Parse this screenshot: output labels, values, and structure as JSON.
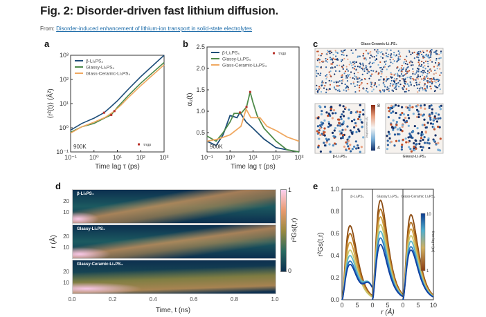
{
  "header": {
    "title": "Fig. 2: Disorder-driven fast lithium diffusion.",
    "from_label": "From:",
    "source_link": "Disorder-induced enhancement of lithium-ion transport in solid-state electrolytes"
  },
  "panel_labels": {
    "a": "a",
    "b": "b",
    "c": "c",
    "d": "d",
    "e": "e"
  },
  "colors": {
    "beta": "#1f4e79",
    "glassy": "#4e8a4a",
    "glass_ceramic": "#f0a860",
    "marker": "#b8322a"
  },
  "chart_data": [
    {
      "panel": "a",
      "type": "line",
      "xscale": "log",
      "yscale": "log",
      "xlim": [
        0.1,
        1000
      ],
      "ylim": [
        0.1,
        1000
      ],
      "xlabel": "Time lag τ (ps)",
      "ylabel": "⟨r²(t)⟩ (Å²)",
      "annotation": "900K",
      "marker_label": "τngp",
      "xticks": [
        "10⁻¹",
        "10⁰",
        "10¹",
        "10²",
        "10³"
      ],
      "yticks": [
        "10⁻¹",
        "10⁰",
        "10¹",
        "10²",
        "10³"
      ],
      "legend": "top-left",
      "series": [
        {
          "name": "β-Li₃PS₄",
          "x": [
            0.1,
            0.3,
            1,
            2.7,
            5,
            10,
            30,
            100,
            1000
          ],
          "y": [
            0.8,
            1.5,
            2.5,
            4.2,
            7,
            13,
            40,
            130,
            1000
          ]
        },
        {
          "name": "Glassy-Li₃PS₄",
          "x": [
            0.1,
            0.3,
            1,
            3,
            5.5,
            10,
            30,
            100,
            1000
          ],
          "y": [
            0.65,
            1.1,
            1.5,
            2.6,
            3.4,
            7,
            22,
            70,
            500
          ]
        },
        {
          "name": "Glass-Ceramic-Li₃PS₄",
          "x": [
            0.1,
            0.3,
            1,
            3,
            7.5,
            15,
            30,
            100,
            1000
          ],
          "y": [
            0.6,
            1.1,
            1.7,
            2.7,
            4.9,
            9,
            18,
            55,
            400
          ]
        }
      ],
      "markers": {
        "x": [
          2.7,
          5.5,
          7.5
        ],
        "y": [
          4.2,
          3.4,
          4.9
        ]
      }
    },
    {
      "panel": "b",
      "type": "line",
      "xscale": "log",
      "xlim": [
        0.1,
        1000
      ],
      "ylim": [
        0.05,
        2.5
      ],
      "xlabel": "Time lag τ (ps)",
      "ylabel": "α₂(t)",
      "annotation": "900K",
      "marker_label": "τngp",
      "xticks": [
        "10⁻¹",
        "10⁰",
        "10¹",
        "10²",
        "10³"
      ],
      "yticks": [
        "0.5",
        "1.0",
        "1.5",
        "2.0",
        "2.5"
      ],
      "legend": "top-left",
      "series": [
        {
          "name": "β-Li₃PS₄",
          "x": [
            0.1,
            0.25,
            0.5,
            1,
            2,
            2.7,
            5,
            10,
            30,
            100,
            300,
            1000
          ],
          "y": [
            0.3,
            0.2,
            0.45,
            0.9,
            0.85,
            0.97,
            0.75,
            0.6,
            0.35,
            0.15,
            0.1,
            0.05
          ]
        },
        {
          "name": "Glassy-Li₃PS₄",
          "x": [
            0.1,
            0.25,
            0.5,
            1,
            1.5,
            3,
            5.2,
            7.5,
            10,
            15,
            30,
            100,
            300,
            1000
          ],
          "y": [
            0.42,
            0.3,
            0.5,
            0.75,
            0.95,
            0.95,
            1.1,
            1.45,
            1.2,
            0.9,
            0.6,
            0.3,
            0.1,
            0.05
          ]
        },
        {
          "name": "Glass-Ceramic-Li₃PS₄",
          "x": [
            0.1,
            0.3,
            1,
            3,
            5,
            8,
            20,
            40,
            100,
            300,
            1000
          ],
          "y": [
            0.3,
            0.35,
            0.45,
            0.65,
            1.05,
            0.85,
            0.85,
            0.65,
            0.55,
            0.4,
            0.3
          ]
        }
      ],
      "markers": {
        "x": [
          2.7,
          5.2,
          7.5
        ],
        "y": [
          0.97,
          1.1,
          1.45
        ]
      }
    },
    {
      "panel": "c",
      "type": "scatter",
      "titles": [
        "Glass-Ceramic-Li₃PS₄",
        "β-Li₃PS₄",
        "Glassy-Li₃PS₄"
      ],
      "colorbar_label": "Displacement (Å)",
      "colorbar_ticks": [
        "8",
        "4"
      ]
    },
    {
      "panel": "d",
      "type": "heatmap",
      "rows": [
        "β-Li₃PS₄",
        "Glassy-Li₃PS₄",
        "Glassy-Ceramic-Li₃PS₄"
      ],
      "xlabel": "Time, t (ns)",
      "ylabel": "r (Å)",
      "xticks": [
        "0.0",
        "0.2",
        "0.4",
        "0.6",
        "0.8",
        "1.0"
      ],
      "yticks": [
        "20",
        "10"
      ],
      "colorbar_label": "r²Gs(t,r)",
      "colorbar_ticks": [
        "1",
        "0"
      ]
    },
    {
      "panel": "e",
      "type": "line",
      "xlabel": "r (Å)",
      "ylabel": "r²Gs(t,r)",
      "xlim": [
        0,
        10
      ],
      "ylim": [
        0,
        1
      ],
      "xticks": [
        "0",
        "5",
        "0",
        "5",
        "0",
        "5",
        "10"
      ],
      "yticks": [
        "0.0",
        "0.2",
        "0.4",
        "0.6",
        "0.8",
        "1.0"
      ],
      "subpanels": [
        {
          "title": "β-Li₃PS₄",
          "peaks": [
            0.67,
            0.6,
            0.52,
            0.45,
            0.4,
            0.35,
            0.32
          ]
        },
        {
          "title": "Glassy Li₃PS₄",
          "peaks": [
            0.9,
            0.82,
            0.75,
            0.68,
            0.62,
            0.56,
            0.5
          ]
        },
        {
          "title": "Glass-Ceramic Li₃PS₄",
          "peaks": [
            0.77,
            0.7,
            0.64,
            0.58,
            0.53,
            0.48,
            0.45
          ]
        }
      ],
      "colorbar_label": "time lag τ (ps)",
      "colorbar_ticks": [
        "10",
        "1"
      ]
    }
  ]
}
